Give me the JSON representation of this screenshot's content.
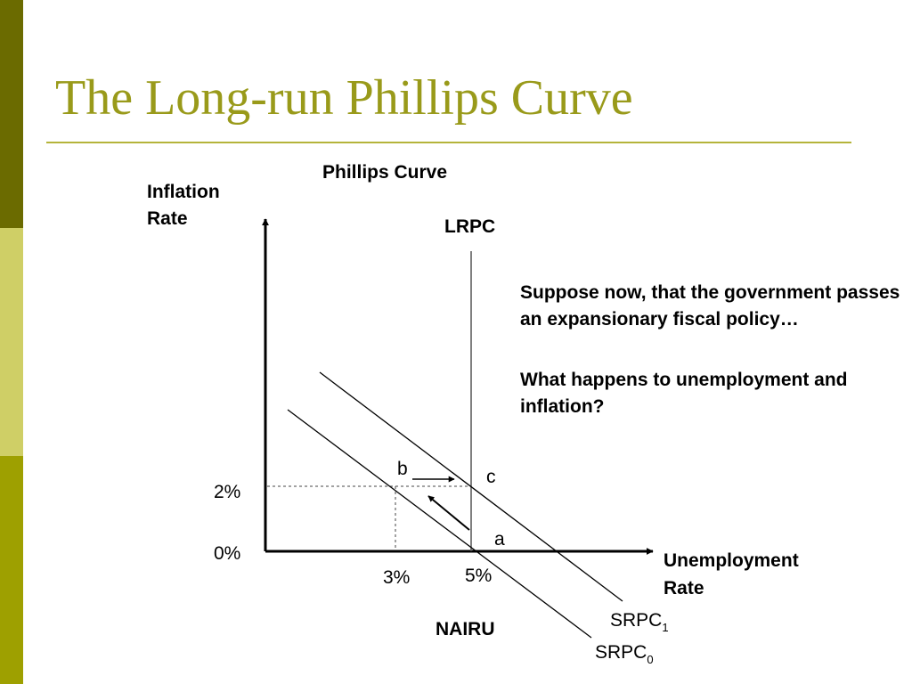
{
  "slide": {
    "title": "The Long-run Phillips Curve",
    "colors": {
      "sidebar_dark": "#6b6b00",
      "sidebar_light": "#cfcf66",
      "sidebar_mid": "#9ea000",
      "title": "#999a1a",
      "rule": "#b5b43a"
    }
  },
  "diagram": {
    "heading": "Phillips Curve",
    "y_axis_label": [
      "Inflation",
      "Rate"
    ],
    "x_axis_label": [
      "Unemployment",
      "Rate"
    ],
    "lrpc_label": "LRPC",
    "nairu_label": "NAIRU",
    "y_ticks": [
      "2%",
      "0%"
    ],
    "x_ticks": [
      "3%",
      "5%"
    ],
    "points": {
      "a": "a",
      "b": "b",
      "c": "c"
    },
    "curves": {
      "srpc1": {
        "base": "SRPC",
        "sub": "1"
      },
      "srpc0": {
        "base": "SRPC",
        "sub": "0"
      }
    }
  },
  "text": {
    "question_1": "Suppose now, that the government passes an expansionary fiscal policy…",
    "question_2": "What happens to unemployment and inflation?"
  }
}
